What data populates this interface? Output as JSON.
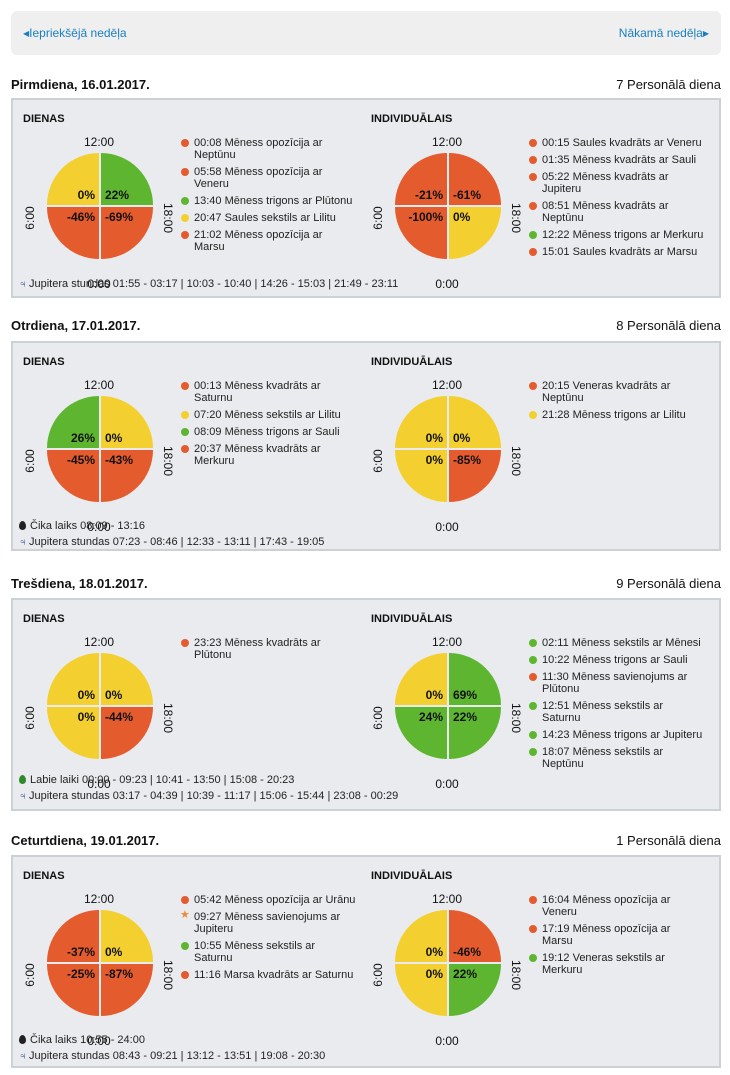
{
  "nav": {
    "prev_label": "Iepriekšējā nedēļa",
    "next_label": "Nākamā nedēļa"
  },
  "labels": {
    "dienas": "DIENAS",
    "individualais": "INDIVIDUĀLAIS",
    "h12": "12:00",
    "h0": "0:00",
    "h6": "6:00",
    "h18": "18:00"
  },
  "colors": {
    "red": "#e45b2e",
    "green": "#5eb630",
    "yellow": "#f3d02f",
    "link": "#1a7fc0"
  },
  "days": [
    {
      "date": "Pirmdiena, 16.01.2017.",
      "personal_day": "7 Personālā diena",
      "dienas": {
        "quadrants": {
          "tl": {
            "value": "0%",
            "color": "yellow"
          },
          "tr": {
            "value": "22%",
            "color": "green"
          },
          "bl": {
            "value": "-46%",
            "color": "red"
          },
          "br": {
            "value": "-69%",
            "color": "red"
          }
        },
        "events": [
          {
            "color": "red",
            "text": "00:08 Mēness opozīcija ar Neptūnu"
          },
          {
            "color": "red",
            "text": "05:58 Mēness opozīcija ar Veneru"
          },
          {
            "color": "green",
            "text": "13:40 Mēness trigons ar Plūtonu"
          },
          {
            "color": "yellow",
            "text": "20:47 Saules sekstils ar Lilitu"
          },
          {
            "color": "red",
            "text": "21:02 Mēness opozīcija ar Marsu"
          }
        ]
      },
      "individual": {
        "quadrants": {
          "tl": {
            "value": "-21%",
            "color": "red"
          },
          "tr": {
            "value": "-61%",
            "color": "red"
          },
          "bl": {
            "value": "-100%",
            "color": "red"
          },
          "br": {
            "value": "0%",
            "color": "yellow"
          }
        },
        "events": [
          {
            "color": "red",
            "text": "00:15 Saules kvadrāts ar Veneru"
          },
          {
            "color": "red",
            "text": "01:35 Mēness kvadrāts ar Sauli"
          },
          {
            "color": "red",
            "text": "05:22 Mēness kvadrāts ar Jupiteru"
          },
          {
            "color": "red",
            "text": "08:51 Mēness kvadrāts ar Neptūnu"
          },
          {
            "color": "green",
            "text": "12:22 Mēness trigons ar Merkuru"
          },
          {
            "color": "red",
            "text": "15:01 Saules kvadrāts ar Marsu"
          }
        ]
      },
      "footer": [
        {
          "icon": "jupiter-icon",
          "text": "Jupitera stundas 01:55 - 03:17 | 10:03 - 10:40 | 14:26 - 15:03 | 21:49 - 23:11"
        }
      ]
    },
    {
      "date": "Otrdiena, 17.01.2017.",
      "personal_day": "8 Personālā diena",
      "dienas": {
        "quadrants": {
          "tl": {
            "value": "26%",
            "color": "green"
          },
          "tr": {
            "value": "0%",
            "color": "yellow"
          },
          "bl": {
            "value": "-45%",
            "color": "red"
          },
          "br": {
            "value": "-43%",
            "color": "red"
          }
        },
        "events": [
          {
            "color": "red",
            "text": "00:13 Mēness kvadrāts ar Saturnu"
          },
          {
            "color": "yellow",
            "text": "07:20 Mēness sekstils ar Lilitu"
          },
          {
            "color": "green",
            "text": "08:09 Mēness trigons ar Sauli"
          },
          {
            "color": "red",
            "text": "20:37 Mēness kvadrāts ar Merkuru"
          }
        ]
      },
      "individual": {
        "quadrants": {
          "tl": {
            "value": "0%",
            "color": "yellow"
          },
          "tr": {
            "value": "0%",
            "color": "yellow"
          },
          "bl": {
            "value": "0%",
            "color": "yellow"
          },
          "br": {
            "value": "-85%",
            "color": "red"
          }
        },
        "events": [
          {
            "color": "red",
            "text": "20:15 Veneras kvadrāts ar Neptūnu"
          },
          {
            "color": "yellow",
            "text": "21:28 Mēness trigons ar Lilitu"
          }
        ]
      },
      "footer": [
        {
          "icon": "drop-icon",
          "text": "Čika laiks 08:09 - 13:16"
        },
        {
          "icon": "jupiter-icon",
          "text": "Jupitera stundas 07:23 - 08:46 | 12:33 - 13:11 | 17:43 - 19:05"
        }
      ]
    },
    {
      "date": "Trešdiena, 18.01.2017.",
      "personal_day": "9 Personālā diena",
      "dienas": {
        "quadrants": {
          "tl": {
            "value": "0%",
            "color": "yellow"
          },
          "tr": {
            "value": "0%",
            "color": "yellow"
          },
          "bl": {
            "value": "0%",
            "color": "yellow"
          },
          "br": {
            "value": "-44%",
            "color": "red"
          }
        },
        "events": [
          {
            "color": "red",
            "text": "23:23 Mēness kvadrāts ar Plūtonu"
          }
        ]
      },
      "individual": {
        "quadrants": {
          "tl": {
            "value": "0%",
            "color": "yellow"
          },
          "tr": {
            "value": "69%",
            "color": "green"
          },
          "bl": {
            "value": "24%",
            "color": "green"
          },
          "br": {
            "value": "22%",
            "color": "green"
          }
        },
        "events": [
          {
            "color": "green",
            "text": "02:11 Mēness sekstils ar Mēnesi"
          },
          {
            "color": "green",
            "text": "10:22 Mēness trigons ar Sauli"
          },
          {
            "color": "red",
            "text": "11:30 Mēness savienojums ar Plūtonu"
          },
          {
            "color": "green",
            "text": "12:51 Mēness sekstils ar Saturnu"
          },
          {
            "color": "green",
            "text": "14:23 Mēness trigons ar Jupiteru"
          },
          {
            "color": "green",
            "text": "18:07 Mēness sekstils ar Neptūnu"
          }
        ]
      },
      "footer": [
        {
          "icon": "green-drop-icon",
          "text": "Labie laiki 00:00 - 09:23 | 10:41 - 13:50 | 15:08 - 20:23"
        },
        {
          "icon": "jupiter-icon",
          "text": "Jupitera stundas 03:17 - 04:39 | 10:39 - 11:17 | 15:06 - 15:44 | 23:08 - 00:29"
        }
      ]
    },
    {
      "date": "Ceturtdiena, 19.01.2017.",
      "personal_day": "1 Personālā diena",
      "dienas": {
        "quadrants": {
          "tl": {
            "value": "-37%",
            "color": "red"
          },
          "tr": {
            "value": "0%",
            "color": "yellow"
          },
          "bl": {
            "value": "-25%",
            "color": "red"
          },
          "br": {
            "value": "-87%",
            "color": "red"
          }
        },
        "events": [
          {
            "color": "red",
            "text": "05:42 Mēness opozīcija ar Urānu"
          },
          {
            "color": "star",
            "text": "09:27 Mēness savienojums ar Jupiteru"
          },
          {
            "color": "green",
            "text": "10:55 Mēness sekstils ar Saturnu"
          },
          {
            "color": "red",
            "text": "11:16 Marsa kvadrāts ar Saturnu"
          }
        ]
      },
      "individual": {
        "quadrants": {
          "tl": {
            "value": "0%",
            "color": "yellow"
          },
          "tr": {
            "value": "-46%",
            "color": "red"
          },
          "bl": {
            "value": "0%",
            "color": "yellow"
          },
          "br": {
            "value": "22%",
            "color": "green"
          }
        },
        "events": [
          {
            "color": "red",
            "text": "16:04 Mēness opozīcija ar Veneru"
          },
          {
            "color": "red",
            "text": "17:19 Mēness opozīcija ar Marsu"
          },
          {
            "color": "green",
            "text": "19:12 Veneras sekstils ar Merkuru"
          }
        ]
      },
      "footer": [
        {
          "icon": "drop-icon",
          "text": "Čika laiks 10:55 - 24:00"
        },
        {
          "icon": "jupiter-icon",
          "text": "Jupitera stundas 08:43 - 09:21 | 13:12 - 13:51 | 19:08 - 20:30"
        }
      ]
    }
  ]
}
